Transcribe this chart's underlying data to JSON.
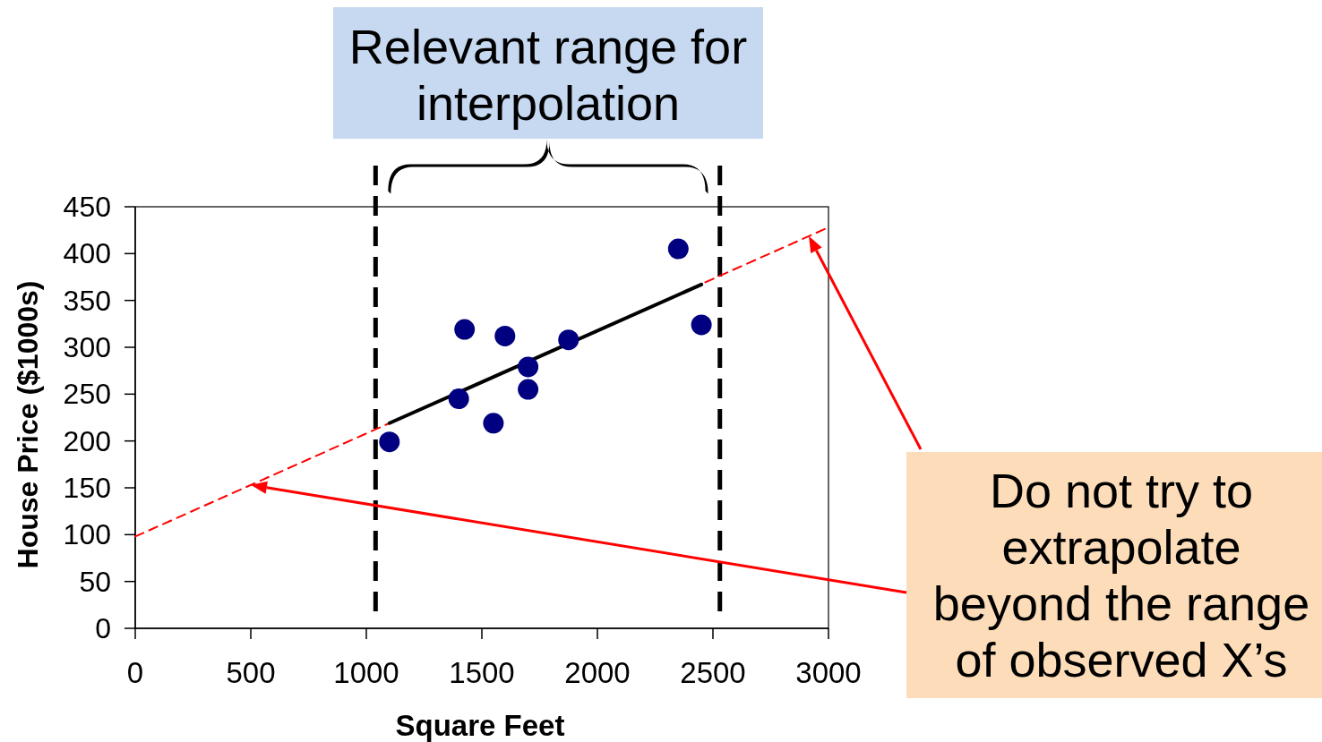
{
  "chart_data": {
    "type": "scatter",
    "xlabel": "Square Feet",
    "ylabel": "House Price ($1000s)",
    "xlim": [
      0,
      3000
    ],
    "xticks": [
      0,
      500,
      1000,
      1500,
      2000,
      2500,
      3000
    ],
    "ylim": [
      0,
      450
    ],
    "yticks": [
      0,
      50,
      100,
      150,
      200,
      250,
      300,
      350,
      400,
      450
    ],
    "grid": false,
    "marker": "circle",
    "series": [
      {
        "type": "line",
        "color": "#ff0000",
        "line_style": "dashed",
        "marker": "none",
        "x": [
          0,
          3000
        ],
        "values": [
          98,
          428
        ]
      },
      {
        "type": "line",
        "color": "#000000",
        "line_style": "solid",
        "marker": "none",
        "x": [
          1100,
          2450
        ],
        "values": [
          219,
          367
        ]
      },
      {
        "color": "#000080",
        "x": [
          1400,
          1600,
          1700,
          1875,
          1100,
          1550,
          2350,
          2450,
          1425,
          1700
        ],
        "values": [
          245,
          312,
          279,
          308,
          199,
          219,
          405,
          324,
          319,
          255
        ]
      }
    ],
    "ref_lines": [
      {
        "axis": "x",
        "value": 1040,
        "color": "#000000",
        "line_style": "dashed"
      },
      {
        "axis": "x",
        "value": 2530,
        "color": "#000000",
        "line_style": "dashed"
      }
    ],
    "annotations": [
      "Relevant range for interpolation",
      "Do not try to extrapolate beyond the range of observed X’s"
    ]
  }
}
